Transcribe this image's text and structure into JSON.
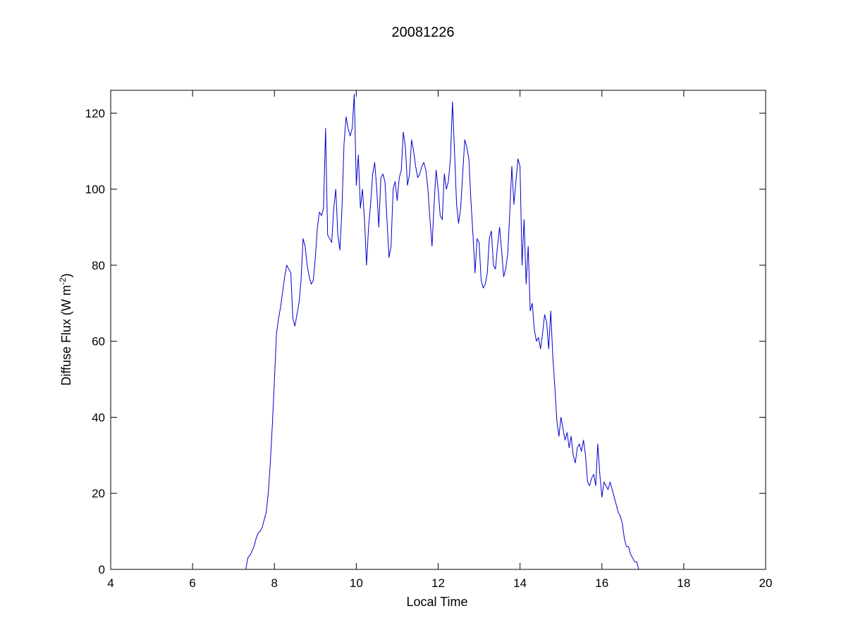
{
  "chart_data": {
    "type": "line",
    "title": "20081226",
    "xlabel": "Local Time",
    "ylabel": {
      "prefix": "Diffuse Flux (W m",
      "superscript": "-2",
      "suffix": ")"
    },
    "xlim": [
      4,
      20
    ],
    "ylim": [
      0,
      126
    ],
    "xticks": [
      4,
      6,
      8,
      10,
      12,
      14,
      16,
      18,
      20
    ],
    "yticks": [
      0,
      20,
      40,
      60,
      80,
      100,
      120
    ],
    "grid": false,
    "box": true,
    "series": [
      {
        "color": "#0000cc",
        "x": [
          7.3,
          7.35,
          7.42,
          7.5,
          7.55,
          7.6,
          7.65,
          7.7,
          7.75,
          7.8,
          7.85,
          7.9,
          7.95,
          8.0,
          8.05,
          8.1,
          8.15,
          8.2,
          8.25,
          8.3,
          8.35,
          8.4,
          8.45,
          8.5,
          8.55,
          8.6,
          8.65,
          8.7,
          8.75,
          8.8,
          8.85,
          8.9,
          8.95,
          9.0,
          9.05,
          9.1,
          9.15,
          9.2,
          9.25,
          9.3,
          9.35,
          9.4,
          9.45,
          9.5,
          9.55,
          9.6,
          9.65,
          9.7,
          9.75,
          9.8,
          9.85,
          9.9,
          9.95,
          10.0,
          10.05,
          10.1,
          10.15,
          10.2,
          10.25,
          10.3,
          10.35,
          10.4,
          10.45,
          10.5,
          10.55,
          10.6,
          10.65,
          10.7,
          10.75,
          10.8,
          10.85,
          10.9,
          10.95,
          11.0,
          11.05,
          11.1,
          11.15,
          11.2,
          11.25,
          11.3,
          11.35,
          11.4,
          11.45,
          11.5,
          11.55,
          11.6,
          11.65,
          11.7,
          11.75,
          11.8,
          11.85,
          11.9,
          11.95,
          12.0,
          12.05,
          12.1,
          12.15,
          12.2,
          12.25,
          12.3,
          12.35,
          12.4,
          12.45,
          12.5,
          12.55,
          12.6,
          12.65,
          12.7,
          12.75,
          12.8,
          12.85,
          12.9,
          12.95,
          13.0,
          13.05,
          13.1,
          13.15,
          13.2,
          13.25,
          13.3,
          13.35,
          13.4,
          13.45,
          13.5,
          13.55,
          13.6,
          13.65,
          13.7,
          13.75,
          13.8,
          13.85,
          13.9,
          13.95,
          14.0,
          14.05,
          14.1,
          14.15,
          14.2,
          14.25,
          14.3,
          14.35,
          14.4,
          14.45,
          14.5,
          14.55,
          14.6,
          14.65,
          14.7,
          14.75,
          14.8,
          14.85,
          14.9,
          14.95,
          15.0,
          15.05,
          15.1,
          15.15,
          15.2,
          15.25,
          15.3,
          15.35,
          15.4,
          15.45,
          15.5,
          15.55,
          15.6,
          15.65,
          15.7,
          15.75,
          15.8,
          15.85,
          15.9,
          15.95,
          16.0,
          16.05,
          16.1,
          16.15,
          16.2,
          16.25,
          16.3,
          16.35,
          16.4,
          16.45,
          16.5,
          16.55,
          16.6,
          16.65,
          16.7,
          16.75,
          16.8,
          16.85,
          16.9
        ],
        "y": [
          0,
          3,
          4,
          6,
          8,
          9.5,
          10,
          11,
          13,
          15,
          20,
          28,
          38,
          50,
          62,
          66,
          69,
          73,
          77,
          80,
          79,
          78,
          66,
          64,
          67,
          70,
          76,
          87,
          85,
          80,
          77,
          75,
          76,
          82,
          90,
          94,
          93,
          95,
          116,
          88,
          87,
          86,
          95,
          100,
          88,
          84,
          95,
          112,
          119,
          116,
          114,
          116,
          125,
          101,
          109,
          95,
          100,
          92,
          80,
          90,
          96,
          104,
          107,
          100,
          90,
          103,
          104,
          102,
          92,
          82,
          85,
          100,
          102,
          97,
          103,
          105,
          115,
          111,
          101,
          104,
          113,
          110,
          106,
          103,
          104,
          106,
          107,
          105,
          100,
          92,
          85,
          96,
          105,
          100,
          93,
          92,
          104,
          100,
          102,
          108,
          123,
          110,
          96,
          91,
          95,
          104,
          113,
          111,
          108,
          97,
          88,
          78,
          87,
          86,
          76,
          74,
          75,
          78,
          87,
          89,
          80,
          79,
          85,
          90,
          84,
          77,
          79,
          83,
          94,
          106,
          96,
          102,
          108,
          106,
          80,
          92,
          75,
          85,
          68,
          70,
          63,
          60,
          61,
          58,
          62,
          67,
          65,
          58,
          68,
          56,
          48,
          39,
          35,
          40,
          37,
          34,
          36,
          32,
          35,
          30,
          28,
          32,
          33,
          31,
          34,
          30,
          23,
          22,
          24,
          25,
          22,
          33,
          25,
          19,
          23,
          22,
          21,
          23,
          21,
          19,
          17,
          15,
          14,
          12,
          8,
          6,
          6,
          4,
          3,
          2,
          2,
          0
        ]
      }
    ]
  }
}
